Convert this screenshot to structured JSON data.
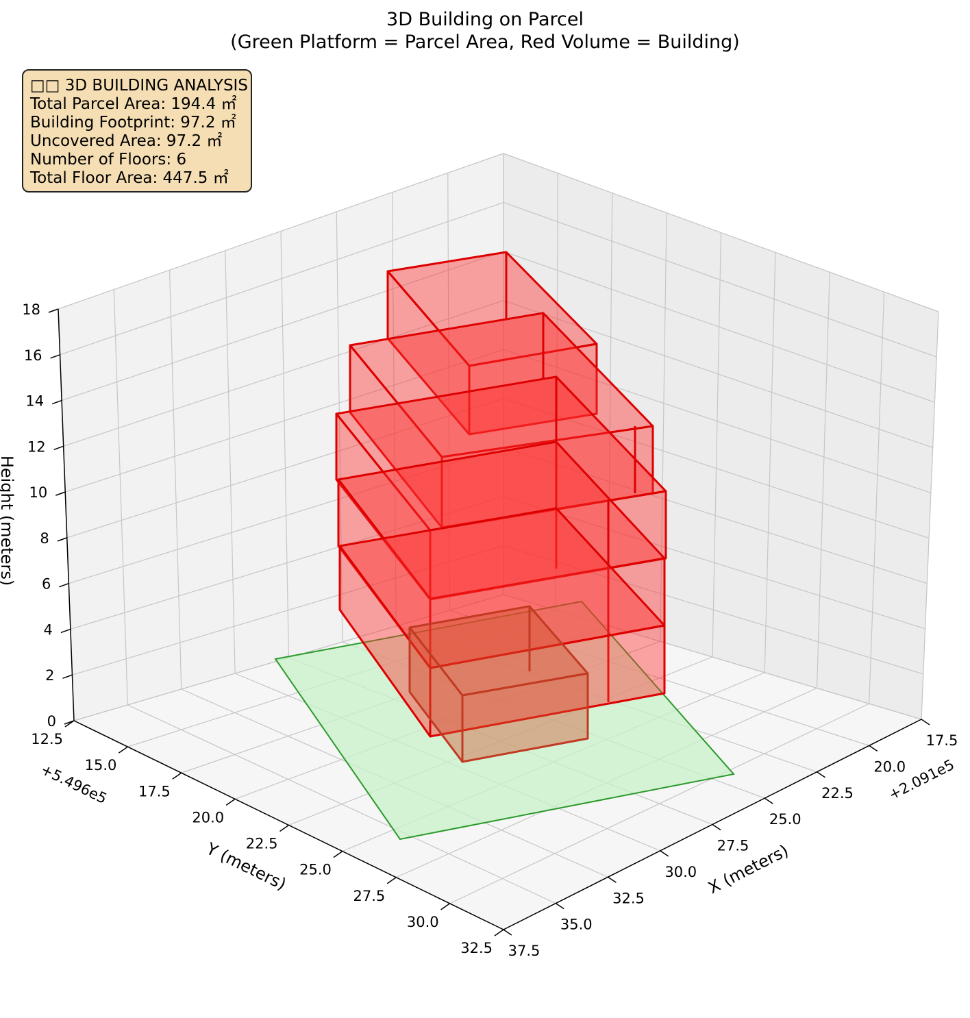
{
  "title_line1": "3D Building on Parcel",
  "title_line2": "(Green Platform = Parcel Area, Red Volume = Building)",
  "info_box": {
    "heading": "□□ 3D BUILDING ANALYSIS",
    "lines": [
      "Total Parcel Area: 194.4 ㎡",
      "Building Footprint: 97.2 ㎡",
      "Uncovered Area: 97.2 ㎡",
      "Number of Floors: 6",
      "Total Floor Area: 447.5 ㎡"
    ]
  },
  "chart_data": {
    "type": "3d-bar",
    "xlabel": "X (meters)",
    "ylabel": "Y (meters)",
    "zlabel": "Height (meters)",
    "x_offset_label": "+2.091e5",
    "y_offset_label": "+5.496e5",
    "x_ticks": [
      "17.5",
      "20.0",
      "22.5",
      "25.0",
      "27.5",
      "30.0",
      "32.5",
      "35.0",
      "37.5"
    ],
    "y_ticks": [
      "12.5",
      "15.0",
      "17.5",
      "20.0",
      "22.5",
      "25.0",
      "27.5",
      "30.0",
      "32.5"
    ],
    "z_ticks": [
      "0",
      "2",
      "4",
      "6",
      "8",
      "10",
      "12",
      "14",
      "16",
      "18"
    ],
    "xlim": [
      17.5,
      37.5
    ],
    "ylim": [
      12.5,
      32.5
    ],
    "zlim": [
      0,
      18
    ],
    "grid": true,
    "colors": {
      "parcel_fill": "#c8f0c8",
      "parcel_edge": "#2a9a2a",
      "building_fill": "#ff2a2a",
      "building_edge": "#dd0000"
    }
  }
}
